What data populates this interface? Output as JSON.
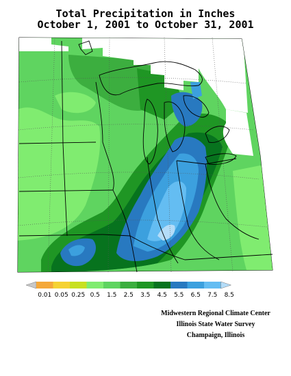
{
  "title": {
    "line1": "Total Precipitation in Inches",
    "line2": "October 1, 2001 to October 31, 2001"
  },
  "legend": {
    "labels": [
      "0.01",
      "0.05",
      "0.25",
      "0.5",
      "1.5",
      "2.5",
      "3.5",
      "4.5",
      "5.5",
      "6.5",
      "7.5",
      "8.5"
    ],
    "colors": [
      "#c8c8c8",
      "#f4a83a",
      "#f5d233",
      "#c8e021",
      "#80ec70",
      "#5fd460",
      "#3cae3f",
      "#1f9624",
      "#07731e",
      "#2879c0",
      "#3ca0de",
      "#64bdf2",
      "#b4dcf8"
    ]
  },
  "credits": {
    "line1": "Midwestern Regional Climate Center",
    "line2": "Illinois State Water Survey",
    "line3": "Champaign, Illinois"
  }
}
